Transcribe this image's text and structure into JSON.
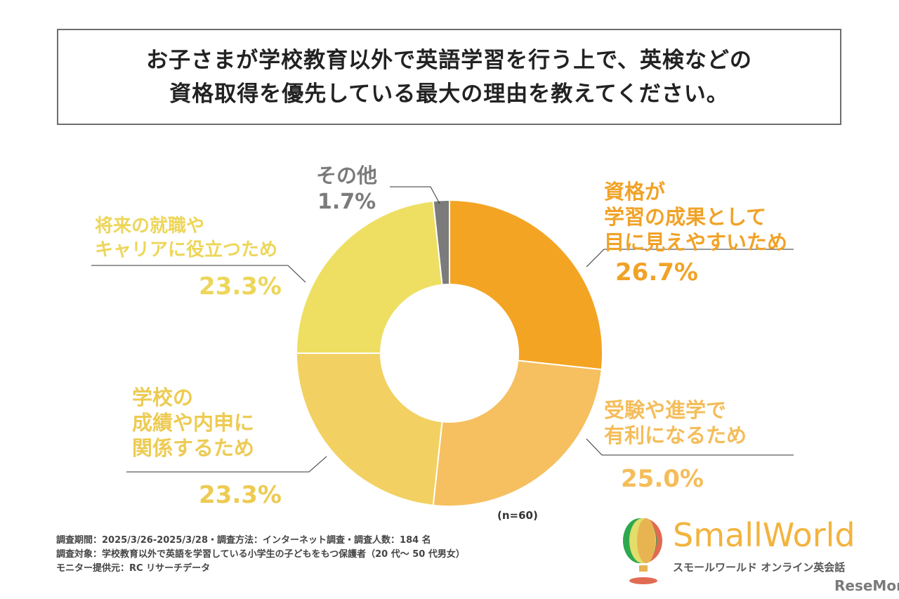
{
  "title_lines": [
    "お子さまが学校教育以外で英語学習を行う上で、英検などの",
    "資格取得を優先している最大の理由を教えてください。"
  ],
  "chart_data": {
    "type": "pie",
    "donut": true,
    "title": "お子さまが学校教育以外で英語学習を行う上で、英検などの資格取得を優先している最大の理由を教えてください。",
    "categories": [
      "資格が学習の成果として目に見えやすいため",
      "受験や進学で有利になるため",
      "学校の成績や内申に関係するため",
      "将来の就職やキャリアに役立つため",
      "その他"
    ],
    "values": [
      26.7,
      25.0,
      23.3,
      23.3,
      1.7
    ],
    "labels": [
      [
        "資格が",
        "学習の成果として",
        "目に見えやすいため"
      ],
      [
        "受験や進学で",
        "有利になるため"
      ],
      [
        "学校の",
        "成績や内申に",
        "関係するため"
      ],
      [
        "将来の就職や",
        "キャリアに役立つため"
      ],
      [
        "その他"
      ]
    ],
    "value_labels": [
      "26.7%",
      "25.0%",
      "23.3%",
      "23.3%",
      "1.7%"
    ],
    "colors": [
      "#F4A423",
      "#F6BF5F",
      "#F2D162",
      "#EEDF63",
      "#7B7B7B"
    ],
    "label_colors": [
      "#F1A226",
      "#F4BD5A",
      "#EDCB52",
      "#EDD65A",
      "#7B7B7B"
    ],
    "n_label": "(n=60)"
  },
  "footer": [
    "調査期間：2025/3/26-2025/3/28・調査方法：インターネット調査・調査人数：184 名",
    "調査対象：学校教育以外で英語を学習している小学生の子どもをもつ保護者（20 代～ 50 代男女）",
    "モニター提供元：RC リサーチデータ"
  ],
  "logo": {
    "name": "SmallWorld",
    "sub": "スモールワールド オンライン英会話",
    "credit": "ReseMom."
  }
}
